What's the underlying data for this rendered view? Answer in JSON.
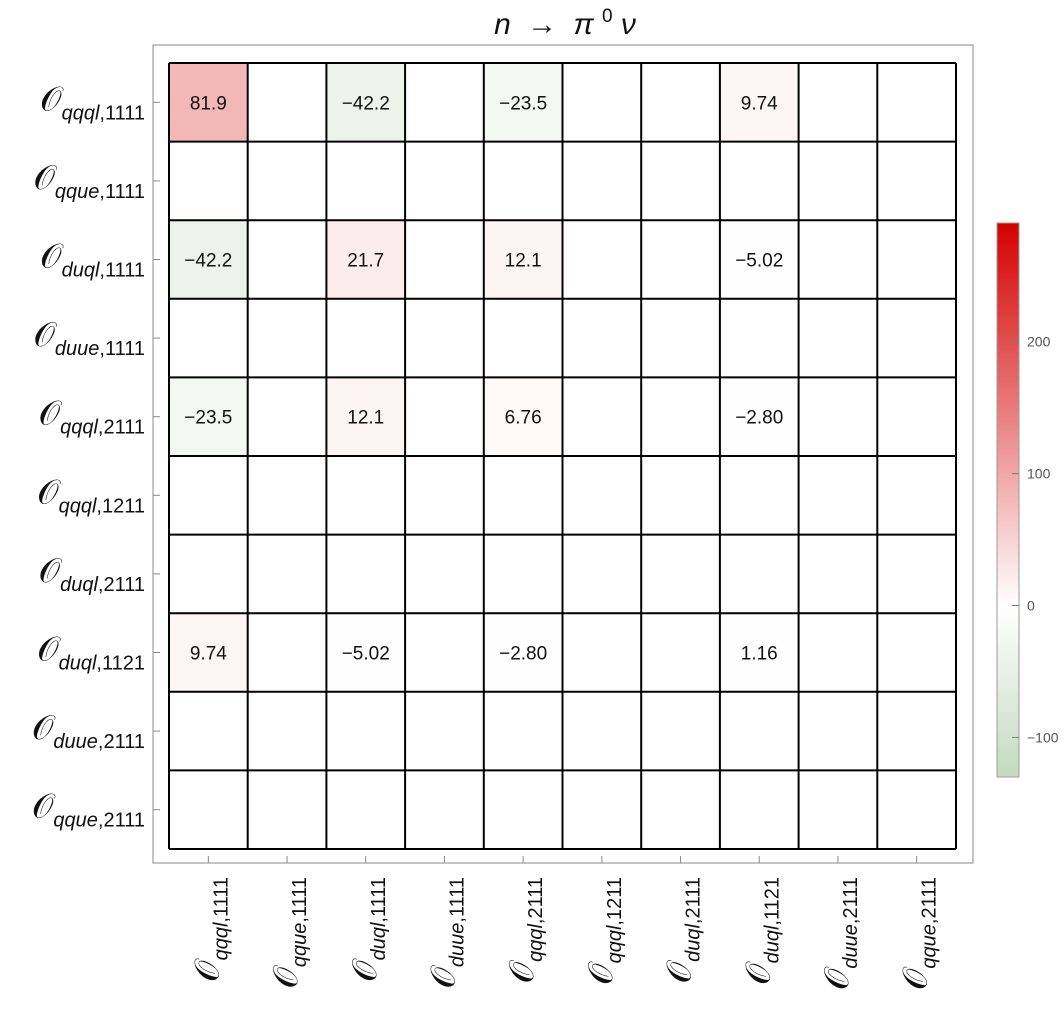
{
  "chart_data": {
    "type": "heatmap",
    "title": {
      "n": "n",
      "arrow": "→",
      "pi": "π",
      "zero": "0",
      "nu": "ν"
    },
    "operator_symbol": "𝒪",
    "row_labels": [
      {
        "sub": "qqql",
        "idx": "1111"
      },
      {
        "sub": "qque",
        "idx": "1111"
      },
      {
        "sub": "duql",
        "idx": "1111"
      },
      {
        "sub": "duue",
        "idx": "1111"
      },
      {
        "sub": "qqql",
        "idx": "2111"
      },
      {
        "sub": "qqql",
        "idx": "1211"
      },
      {
        "sub": "duql",
        "idx": "2111"
      },
      {
        "sub": "duql",
        "idx": "1121"
      },
      {
        "sub": "duue",
        "idx": "2111"
      },
      {
        "sub": "qque",
        "idx": "2111"
      }
    ],
    "column_labels": [
      {
        "sub": "qqql",
        "idx": "1111"
      },
      {
        "sub": "qque",
        "idx": "1111"
      },
      {
        "sub": "duql",
        "idx": "1111"
      },
      {
        "sub": "duue",
        "idx": "1111"
      },
      {
        "sub": "qqql",
        "idx": "2111"
      },
      {
        "sub": "qqql",
        "idx": "1211"
      },
      {
        "sub": "duql",
        "idx": "2111"
      },
      {
        "sub": "duql",
        "idx": "1121"
      },
      {
        "sub": "duue",
        "idx": "2111"
      },
      {
        "sub": "qque",
        "idx": "2111"
      }
    ],
    "values": [
      [
        81.9,
        null,
        -42.2,
        null,
        -23.5,
        null,
        null,
        9.74,
        null,
        null
      ],
      [
        null,
        null,
        null,
        null,
        null,
        null,
        null,
        null,
        null,
        null
      ],
      [
        -42.2,
        null,
        21.7,
        null,
        12.1,
        null,
        null,
        -5.02,
        null,
        null
      ],
      [
        null,
        null,
        null,
        null,
        null,
        null,
        null,
        null,
        null,
        null
      ],
      [
        -23.5,
        null,
        12.1,
        null,
        6.76,
        null,
        null,
        -2.8,
        null,
        null
      ],
      [
        null,
        null,
        null,
        null,
        null,
        null,
        null,
        null,
        null,
        null
      ],
      [
        null,
        null,
        null,
        null,
        null,
        null,
        null,
        null,
        null,
        null
      ],
      [
        9.74,
        null,
        -5.02,
        null,
        -2.8,
        null,
        null,
        1.16,
        null,
        null
      ],
      [
        null,
        null,
        null,
        null,
        null,
        null,
        null,
        null,
        null,
        null
      ],
      [
        null,
        null,
        null,
        null,
        null,
        null,
        null,
        null,
        null,
        null
      ]
    ],
    "value_labels": [
      [
        "81.9",
        "",
        "−42.2",
        "",
        "−23.5",
        "",
        "",
        "9.74",
        "",
        ""
      ],
      [
        "",
        "",
        "",
        "",
        "",
        "",
        "",
        "",
        "",
        ""
      ],
      [
        "−42.2",
        "",
        "21.7",
        "",
        "12.1",
        "",
        "",
        "−5.02",
        "",
        ""
      ],
      [
        "",
        "",
        "",
        "",
        "",
        "",
        "",
        "",
        "",
        ""
      ],
      [
        "−23.5",
        "",
        "12.1",
        "",
        "6.76",
        "",
        "",
        "−2.80",
        "",
        ""
      ],
      [
        "",
        "",
        "",
        "",
        "",
        "",
        "",
        "",
        "",
        ""
      ],
      [
        "",
        "",
        "",
        "",
        "",
        "",
        "",
        "",
        "",
        ""
      ],
      [
        "9.74",
        "",
        "−5.02",
        "",
        "−2.80",
        "",
        "",
        "1.16",
        "",
        ""
      ],
      [
        "",
        "",
        "",
        "",
        "",
        "",
        "",
        "",
        "",
        ""
      ],
      [
        "",
        "",
        "",
        "",
        "",
        "",
        "",
        "",
        "",
        ""
      ]
    ],
    "colorbar": {
      "range": [
        -130,
        290
      ],
      "ticks": [
        {
          "value": 200,
          "label": "200"
        },
        {
          "value": 100,
          "label": "100"
        },
        {
          "value": 0,
          "label": "0"
        },
        {
          "value": -100,
          "label": "−100"
        }
      ],
      "colors": {
        "max": "#d40000",
        "mid": "#ffffff",
        "min": "#c3dbbf"
      }
    },
    "grid": true,
    "legend_position": "right"
  }
}
